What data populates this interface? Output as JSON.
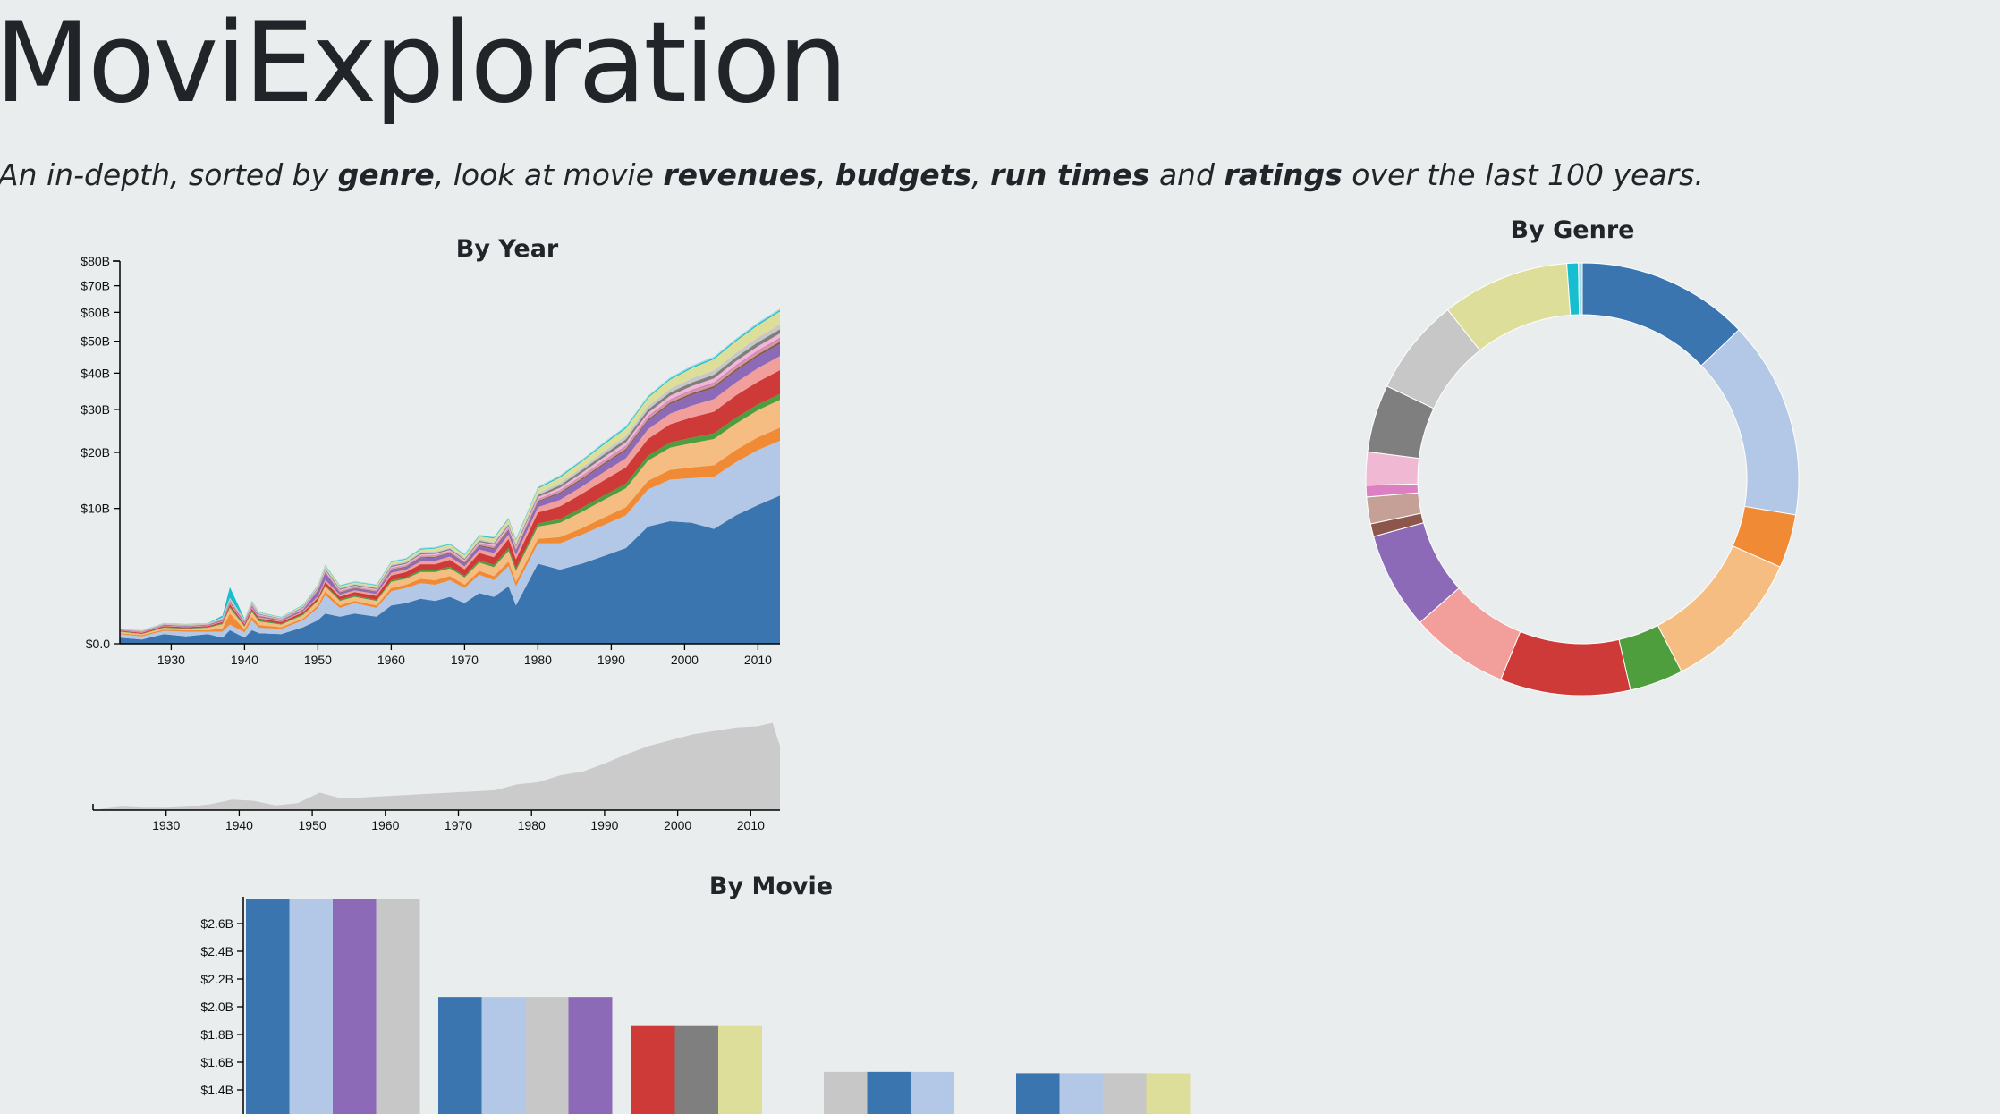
{
  "header": {
    "title": "MoviExploration",
    "subtitle": {
      "t1": "An in-depth, sorted by ",
      "b1": "genre",
      "t2": ", look at movie ",
      "b2": "revenues",
      "t3": ", ",
      "b3": "budgets",
      "t4": ", ",
      "b4": "run times",
      "t5": " and ",
      "b5": "ratings",
      "t6": " over the last 100 years."
    }
  },
  "colors": {
    "palette": [
      "#3a75b0",
      "#b3c7e6",
      "#f08a35",
      "#f6bd82",
      "#4e9e3e",
      "#cd3a38",
      "#f29e9b",
      "#8d6ab8",
      "#8c564b",
      "#c4a096",
      "#dc7fc3",
      "#f0b8d3",
      "#7f7f7f",
      "#c7c7c7",
      "#dede9b",
      "#17becf",
      "#9edae5"
    ],
    "context_fill": "#cbcbcb",
    "background": "#e9edee"
  },
  "chart_data": [
    {
      "type": "area",
      "title": "By Year",
      "stacked": true,
      "ylabel": "",
      "xlabel": "",
      "y_ticks": [
        "$0.0",
        "$10B",
        "$20B",
        "$30B",
        "$40B",
        "$50B",
        "$60B",
        "$70B",
        "$80B"
      ],
      "x_ticks": [
        "1930",
        "1940",
        "1950",
        "1960",
        "1970",
        "1980",
        "1990",
        "2000",
        "2010"
      ],
      "x_range": [
        1923,
        2013
      ],
      "y_scale": "sqrt",
      "ylim": [
        0,
        80
      ],
      "years": [
        1923,
        1926,
        1929,
        1932,
        1935,
        1937,
        1938,
        1940,
        1941,
        1942,
        1945,
        1948,
        1950,
        1951,
        1953,
        1955,
        1958,
        1960,
        1962,
        1964,
        1966,
        1968,
        1970,
        1972,
        1974,
        1976,
        1977,
        1980,
        1983,
        1986,
        1989,
        1992,
        1995,
        1998,
        2001,
        2004,
        2007,
        2010,
        2013
      ],
      "series_values": [
        [
          0.02,
          0.01,
          0.05,
          0.03,
          0.05,
          0.02,
          0.1,
          0.02,
          0.1,
          0.06,
          0.05,
          0.15,
          0.3,
          0.5,
          0.4,
          0.5,
          0.4,
          0.8,
          0.9,
          1.1,
          1.0,
          1.2,
          0.9,
          1.4,
          1.2,
          1.8,
          0.8,
          3.5,
          3.0,
          3.5,
          4.2,
          5.0,
          7.5,
          8.2,
          8.0,
          7.2,
          9.0,
          10.5,
          12.0
        ],
        [
          0.03,
          0.02,
          0.04,
          0.05,
          0.03,
          0.06,
          0.1,
          0.05,
          0.2,
          0.08,
          0.07,
          0.15,
          0.4,
          0.8,
          0.3,
          0.4,
          0.3,
          0.7,
          0.8,
          0.9,
          0.9,
          1.0,
          0.8,
          1.2,
          1.0,
          1.5,
          1.0,
          2.0,
          2.5,
          3.0,
          3.5,
          4.0,
          5.5,
          6.5,
          7.0,
          8.0,
          9.0,
          10.0,
          10.5
        ],
        [
          0.01,
          0.01,
          0.02,
          0.02,
          0.02,
          0.05,
          0.3,
          0.04,
          0.1,
          0.05,
          0.03,
          0.05,
          0.1,
          0.2,
          0.1,
          0.1,
          0.1,
          0.2,
          0.2,
          0.3,
          0.3,
          0.3,
          0.2,
          0.3,
          0.3,
          0.4,
          0.3,
          0.5,
          0.7,
          0.8,
          1.0,
          1.2,
          1.5,
          1.8,
          2.0,
          2.2,
          2.5,
          2.8,
          3.0
        ],
        [
          0.02,
          0.01,
          0.03,
          0.02,
          0.04,
          0.08,
          0.2,
          0.05,
          0.15,
          0.08,
          0.05,
          0.1,
          0.2,
          0.3,
          0.2,
          0.2,
          0.2,
          0.4,
          0.4,
          0.5,
          0.6,
          0.6,
          0.5,
          0.7,
          0.7,
          1.0,
          0.8,
          1.5,
          1.8,
          2.2,
          2.6,
          3.0,
          3.8,
          4.5,
          5.0,
          5.5,
          6.0,
          6.5,
          7.0
        ],
        [
          0.005,
          0.005,
          0.01,
          0.01,
          0.01,
          0.02,
          0.05,
          0.02,
          0.04,
          0.03,
          0.02,
          0.03,
          0.05,
          0.08,
          0.06,
          0.06,
          0.05,
          0.1,
          0.1,
          0.15,
          0.15,
          0.15,
          0.12,
          0.2,
          0.2,
          0.3,
          0.2,
          0.4,
          0.5,
          0.6,
          0.7,
          0.8,
          1.0,
          1.1,
          1.2,
          1.3,
          1.4,
          1.5,
          1.6
        ],
        [
          0.01,
          0.01,
          0.02,
          0.02,
          0.02,
          0.03,
          0.1,
          0.03,
          0.08,
          0.05,
          0.04,
          0.06,
          0.1,
          0.2,
          0.15,
          0.2,
          0.2,
          0.35,
          0.4,
          0.5,
          0.5,
          0.6,
          0.5,
          0.7,
          0.7,
          1.0,
          0.8,
          1.5,
          1.8,
          2.2,
          2.6,
          3.0,
          3.6,
          4.2,
          4.8,
          5.2,
          5.8,
          6.2,
          6.8
        ],
        [
          0.005,
          0.005,
          0.01,
          0.01,
          0.01,
          0.02,
          0.05,
          0.02,
          0.05,
          0.03,
          0.02,
          0.04,
          0.08,
          0.15,
          0.1,
          0.1,
          0.1,
          0.2,
          0.2,
          0.25,
          0.3,
          0.3,
          0.25,
          0.35,
          0.4,
          0.5,
          0.4,
          0.8,
          1.0,
          1.2,
          1.5,
          1.8,
          2.2,
          2.6,
          3.0,
          3.3,
          3.6,
          4.0,
          4.3
        ],
        [
          0.005,
          0.005,
          0.01,
          0.01,
          0.01,
          0.02,
          0.05,
          0.02,
          0.05,
          0.03,
          0.02,
          0.04,
          0.3,
          0.5,
          0.1,
          0.1,
          0.1,
          0.2,
          0.2,
          0.3,
          0.3,
          0.3,
          0.25,
          0.35,
          0.4,
          0.5,
          0.4,
          0.8,
          1.0,
          1.2,
          1.4,
          1.6,
          2.0,
          2.4,
          2.8,
          3.0,
          3.3,
          3.6,
          3.9
        ],
        [
          0.002,
          0.002,
          0.004,
          0.004,
          0.004,
          0.01,
          0.02,
          0.01,
          0.02,
          0.01,
          0.01,
          0.02,
          0.03,
          0.05,
          0.04,
          0.04,
          0.04,
          0.06,
          0.06,
          0.08,
          0.08,
          0.08,
          0.07,
          0.1,
          0.1,
          0.12,
          0.1,
          0.15,
          0.2,
          0.25,
          0.3,
          0.35,
          0.4,
          0.45,
          0.5,
          0.55,
          0.6,
          0.65,
          0.7
        ],
        [
          0.002,
          0.002,
          0.004,
          0.004,
          0.004,
          0.01,
          0.02,
          0.01,
          0.02,
          0.01,
          0.01,
          0.02,
          0.03,
          0.05,
          0.04,
          0.04,
          0.04,
          0.06,
          0.06,
          0.08,
          0.08,
          0.08,
          0.07,
          0.1,
          0.1,
          0.12,
          0.1,
          0.15,
          0.2,
          0.25,
          0.3,
          0.35,
          0.4,
          0.45,
          0.5,
          0.55,
          0.6,
          0.65,
          0.7
        ],
        [
          0.002,
          0.002,
          0.004,
          0.004,
          0.004,
          0.01,
          0.02,
          0.01,
          0.02,
          0.01,
          0.01,
          0.02,
          0.03,
          0.05,
          0.04,
          0.04,
          0.04,
          0.06,
          0.06,
          0.08,
          0.08,
          0.08,
          0.07,
          0.1,
          0.1,
          0.12,
          0.1,
          0.15,
          0.2,
          0.25,
          0.3,
          0.35,
          0.4,
          0.45,
          0.5,
          0.55,
          0.6,
          0.65,
          0.7
        ],
        [
          0.003,
          0.003,
          0.005,
          0.005,
          0.005,
          0.01,
          0.03,
          0.01,
          0.03,
          0.02,
          0.01,
          0.03,
          0.05,
          0.1,
          0.06,
          0.06,
          0.06,
          0.1,
          0.1,
          0.12,
          0.12,
          0.12,
          0.1,
          0.15,
          0.15,
          0.2,
          0.15,
          0.3,
          0.4,
          0.5,
          0.6,
          0.7,
          0.8,
          0.9,
          1.0,
          1.1,
          1.2,
          1.3,
          1.4
        ],
        [
          0.003,
          0.003,
          0.005,
          0.005,
          0.005,
          0.01,
          0.03,
          0.01,
          0.03,
          0.02,
          0.01,
          0.03,
          0.05,
          0.1,
          0.06,
          0.06,
          0.06,
          0.1,
          0.1,
          0.12,
          0.12,
          0.12,
          0.1,
          0.15,
          0.15,
          0.2,
          0.15,
          0.3,
          0.4,
          0.5,
          0.6,
          0.7,
          0.8,
          0.9,
          1.0,
          1.1,
          1.2,
          1.3,
          1.4
        ],
        [
          0.003,
          0.003,
          0.005,
          0.005,
          0.005,
          0.01,
          0.03,
          0.01,
          0.03,
          0.02,
          0.01,
          0.03,
          0.05,
          0.1,
          0.06,
          0.06,
          0.06,
          0.1,
          0.1,
          0.12,
          0.12,
          0.12,
          0.1,
          0.15,
          0.15,
          0.2,
          0.15,
          0.3,
          0.4,
          0.5,
          0.6,
          0.7,
          0.9,
          1.0,
          1.2,
          1.3,
          1.4,
          1.6,
          1.7
        ],
        [
          0.005,
          0.005,
          0.01,
          0.01,
          0.01,
          0.02,
          0.05,
          0.02,
          0.05,
          0.03,
          0.02,
          0.04,
          0.08,
          0.15,
          0.1,
          0.1,
          0.1,
          0.2,
          0.2,
          0.25,
          0.3,
          0.3,
          0.25,
          0.35,
          0.4,
          0.5,
          0.4,
          0.8,
          1.0,
          1.2,
          1.5,
          1.8,
          2.2,
          2.6,
          3.0,
          3.4,
          3.8,
          4.2,
          4.6
        ],
        [
          0.002,
          0.002,
          0.004,
          0.004,
          0.004,
          0.05,
          0.6,
          0.01,
          0.02,
          0.01,
          0.01,
          0.02,
          0.03,
          0.05,
          0.04,
          0.04,
          0.04,
          0.06,
          0.06,
          0.08,
          0.08,
          0.08,
          0.07,
          0.1,
          0.1,
          0.12,
          0.1,
          0.15,
          0.2,
          0.2,
          0.25,
          0.3,
          0.3,
          0.35,
          0.4,
          0.4,
          0.45,
          0.5,
          0.5
        ],
        [
          0.002,
          0.002,
          0.004,
          0.004,
          0.004,
          0.01,
          0.02,
          0.01,
          0.02,
          0.01,
          0.01,
          0.02,
          0.03,
          0.05,
          0.04,
          0.04,
          0.04,
          0.06,
          0.06,
          0.08,
          0.08,
          0.08,
          0.07,
          0.1,
          0.1,
          0.12,
          0.1,
          0.15,
          0.2,
          0.2,
          0.25,
          0.3,
          0.3,
          0.35,
          0.4,
          0.4,
          0.45,
          0.5,
          0.5
        ]
      ]
    },
    {
      "type": "area",
      "title": "",
      "x_ticks": [
        "1930",
        "1940",
        "1950",
        "1960",
        "1970",
        "1980",
        "1990",
        "2000",
        "2010"
      ],
      "x_range": [
        1920,
        2014
      ],
      "years": [
        1921,
        1924,
        1927,
        1930,
        1933,
        1936,
        1939,
        1942,
        1945,
        1948,
        1951,
        1954,
        1957,
        1960,
        1963,
        1966,
        1969,
        1972,
        1975,
        1978,
        1981,
        1984,
        1987,
        1990,
        1993,
        1996,
        1999,
        2002,
        2005,
        2008,
        2011,
        2013,
        2014
      ],
      "values": [
        1,
        3,
        2,
        2,
        3,
        5,
        9,
        8,
        4,
        6,
        15,
        10,
        11,
        12,
        13,
        14,
        15,
        16,
        17,
        22,
        24,
        30,
        33,
        40,
        48,
        55,
        60,
        65,
        68,
        71,
        72,
        75,
        55
      ],
      "ylim": [
        0,
        80
      ]
    },
    {
      "type": "pie",
      "title": "By Genre",
      "donut": true,
      "slice_values": [
        13.5,
        15.5,
        4.2,
        11.3,
        4.2,
        10.2,
        7.7,
        7.6,
        1.0,
        2.1,
        0.9,
        2.6,
        5.3,
        7.6,
        10.0,
        0.9,
        0.3
      ]
    },
    {
      "type": "bar",
      "title": "By Movie",
      "y_ticks": [
        "$1.4B",
        "$1.6B",
        "$1.8B",
        "$2.0B",
        "$2.2B",
        "$2.4B",
        "$2.6B"
      ],
      "ylim": [
        1.24,
        2.78
      ],
      "groups": [
        {
          "value": 2.78,
          "colors": [
            0,
            1,
            7,
            13
          ]
        },
        {
          "value": 2.07,
          "colors": [
            0,
            1,
            13,
            7
          ]
        },
        {
          "value": 1.86,
          "colors": [
            5,
            12,
            14
          ]
        },
        {
          "value": 1.53,
          "colors": [
            13,
            0,
            1
          ]
        },
        {
          "value": 1.52,
          "colors": [
            0,
            1,
            13,
            14
          ]
        }
      ]
    }
  ]
}
